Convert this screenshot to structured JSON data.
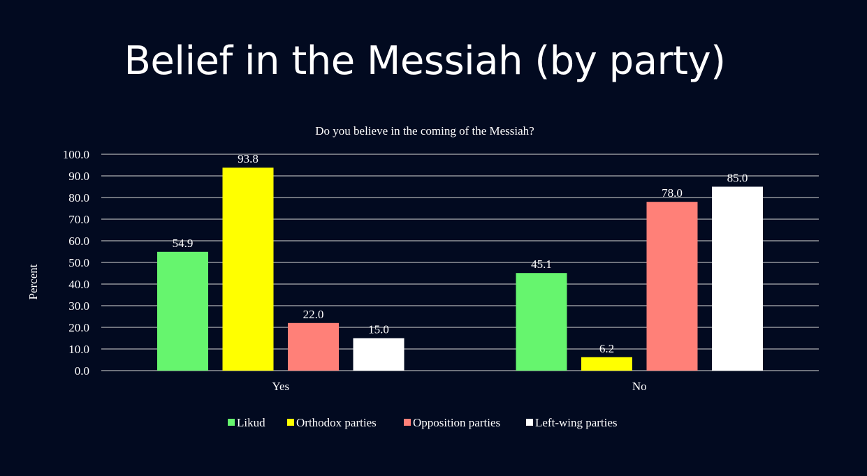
{
  "slide": {
    "title": "Belief in the Messiah (by party)"
  },
  "chart_data": {
    "type": "bar",
    "title": "Do you believe in the coming of the Messiah?",
    "xlabel": "",
    "ylabel": "Percent",
    "ylim": [
      0,
      100
    ],
    "yticks": [
      0,
      10,
      20,
      30,
      40,
      50,
      60,
      70,
      80,
      90,
      100
    ],
    "categories": [
      "Yes",
      "No"
    ],
    "series": [
      {
        "name": "Likud",
        "color": "#66f56e",
        "values": [
          54.9,
          45.1
        ],
        "labels": [
          "54.9",
          "45.1"
        ]
      },
      {
        "name": "Orthodox parties",
        "color": "#ffff00",
        "values": [
          93.8,
          6.2
        ],
        "labels": [
          "93.8",
          "6.2"
        ]
      },
      {
        "name": "Opposition parties",
        "color": "#ff8078",
        "values": [
          22.0,
          78.0
        ],
        "labels": [
          "22.0",
          "78.0"
        ]
      },
      {
        "name": "Left-wing parties",
        "color": "#ffffff",
        "values": [
          15.0,
          85.0
        ],
        "labels": [
          "15.0",
          "85.0"
        ]
      }
    ],
    "grid": true,
    "legend": "bottom",
    "colors": {
      "background": "#020a20",
      "text": "#ffffff",
      "grid": "#d9d9d9"
    }
  }
}
